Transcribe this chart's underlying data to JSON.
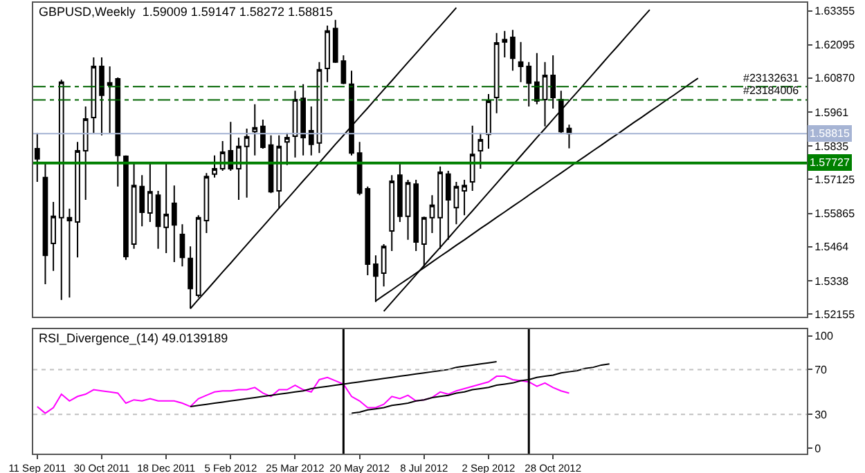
{
  "chart_data": [
    {
      "type": "candlestick",
      "title": "GBPUSD,Weekly  1.59009 1.59147 1.58272 1.58815",
      "categories": [
        null,
        null,
        null,
        null,
        null,
        null,
        null,
        null,
        null,
        null,
        null,
        null,
        null,
        null,
        null,
        null,
        null,
        null,
        null,
        null,
        null,
        null,
        null,
        null,
        null,
        null,
        null,
        null,
        null,
        null,
        null,
        null,
        null,
        null,
        null,
        null,
        null,
        null,
        null,
        null,
        null,
        null,
        null,
        null,
        null,
        null,
        null,
        null,
        null,
        null,
        null,
        null,
        null,
        null,
        null,
        null,
        null,
        null,
        null,
        null,
        null,
        null,
        null,
        null,
        null,
        null,
        null,
        null,
        null,
        null,
        null,
        null,
        null,
        null,
        null,
        null,
        null,
        null,
        null,
        null,
        null,
        null,
        null,
        null,
        null,
        null,
        null,
        null,
        null,
        null,
        null,
        null,
        null,
        null,
        null,
        null
      ],
      "ohlc": [
        [
          1.5826,
          1.5884,
          1.5703,
          1.5788
        ],
        [
          1.5719,
          1.5777,
          1.5325,
          1.5432
        ],
        [
          1.5476,
          1.5629,
          1.5374,
          1.5576
        ],
        [
          1.5571,
          1.6081,
          1.5267,
          1.6072
        ],
        [
          1.5571,
          1.5604,
          1.5276,
          1.556
        ],
        [
          1.5555,
          1.5851,
          1.5424,
          1.5818
        ],
        [
          1.5818,
          1.5982,
          1.5637,
          1.5936
        ],
        [
          1.5941,
          1.6163,
          1.5884,
          1.613
        ],
        [
          1.613,
          1.6163,
          1.5875,
          1.6023
        ],
        [
          1.6069,
          1.613,
          1.5884,
          1.6061
        ],
        [
          1.6084,
          1.6089,
          1.5686,
          1.5801
        ],
        [
          1.5798,
          1.5801,
          1.5415,
          1.5427
        ],
        [
          1.5473,
          1.5777,
          1.5456,
          1.569
        ],
        [
          1.5686,
          1.5728,
          1.5539,
          1.5591
        ],
        [
          1.5588,
          1.5772,
          1.5555,
          1.5667
        ],
        [
          1.5654,
          1.567,
          1.5456,
          1.5539
        ],
        [
          1.5535,
          1.5772,
          1.544,
          1.5583
        ],
        [
          1.5624,
          1.569,
          1.5407,
          1.5544
        ],
        [
          1.5509,
          1.5547,
          1.5391,
          1.5424
        ],
        [
          1.542,
          1.5465,
          1.5235,
          1.5309
        ],
        [
          1.5284,
          1.558,
          1.5276,
          1.5571
        ],
        [
          1.556,
          1.5736,
          1.5514,
          1.5723
        ],
        [
          1.5732,
          1.5801,
          1.5719,
          1.5752
        ],
        [
          1.5752,
          1.5854,
          1.5744,
          1.5813
        ],
        [
          1.5818,
          1.5925,
          1.5744,
          1.5752
        ],
        [
          1.5752,
          1.5867,
          1.5637,
          1.5834
        ],
        [
          1.5834,
          1.59,
          1.5645,
          1.587
        ],
        [
          1.5889,
          1.599,
          1.5801,
          1.5903
        ],
        [
          1.5908,
          1.5933,
          1.5826,
          1.5831
        ],
        [
          1.5839,
          1.5875,
          1.5662,
          1.5667
        ],
        [
          1.567,
          1.5875,
          1.5604,
          1.5834
        ],
        [
          1.5851,
          1.5884,
          1.5765,
          1.5867
        ],
        [
          1.5872,
          1.604,
          1.5793,
          1.6007
        ],
        [
          1.6012,
          1.6064,
          1.5801,
          1.5867
        ],
        [
          1.5892,
          1.5982,
          1.5801,
          1.5842
        ],
        [
          1.5847,
          1.6146,
          1.581,
          1.6118
        ],
        [
          1.6122,
          1.6281,
          1.6072,
          1.6261
        ],
        [
          1.627,
          1.6302,
          1.6143,
          1.6146
        ],
        [
          1.615,
          1.6171,
          1.6064,
          1.6068
        ],
        [
          1.6064,
          1.6114,
          1.5801,
          1.581
        ],
        [
          1.581,
          1.5851,
          1.5654,
          1.5662
        ],
        [
          1.5678,
          1.5686,
          1.5358,
          1.5399
        ],
        [
          1.5399,
          1.5432,
          1.5259,
          1.5355
        ],
        [
          1.5366,
          1.5473,
          1.5317,
          1.5465
        ],
        [
          1.5522,
          1.5728,
          1.5448,
          1.5706
        ],
        [
          1.5728,
          1.5769,
          1.5555,
          1.5576
        ],
        [
          1.5576,
          1.5711,
          1.5489,
          1.57
        ],
        [
          1.5695,
          1.5711,
          1.5448,
          1.5481
        ],
        [
          1.5473,
          1.5575,
          1.5391,
          1.5571
        ],
        [
          1.5571,
          1.5654,
          1.5514,
          1.5617
        ],
        [
          1.5571,
          1.576,
          1.5456,
          1.5739
        ],
        [
          1.5732,
          1.5744,
          1.5489,
          1.5637
        ],
        [
          1.5608,
          1.5703,
          1.5547,
          1.5686
        ],
        [
          1.567,
          1.5711,
          1.558,
          1.569
        ],
        [
          1.5703,
          1.5911,
          1.567,
          1.5805
        ],
        [
          1.5818,
          1.5884,
          1.5752,
          1.5859
        ],
        [
          1.5879,
          1.6028,
          1.5826,
          1.6002
        ],
        [
          1.6015,
          1.6253,
          1.5957,
          1.6217
        ],
        [
          1.6229,
          1.6261,
          1.6163,
          1.622
        ],
        [
          1.6237,
          1.6265,
          1.6114,
          1.616
        ],
        [
          1.6146,
          1.622,
          1.6072,
          1.613
        ],
        [
          1.613,
          1.6146,
          1.5982,
          1.6068
        ],
        [
          1.6072,
          1.6179,
          1.599,
          1.6002
        ],
        [
          1.6007,
          1.6146,
          1.5908,
          1.6097
        ],
        [
          1.6097,
          1.6171,
          1.5974,
          1.6015
        ],
        [
          1.6007,
          1.604,
          1.5884,
          1.5889
        ],
        [
          1.59009,
          1.59147,
          1.58272,
          1.58815
        ],
        null,
        null,
        null,
        null,
        null,
        null,
        null,
        null,
        null,
        null,
        null,
        null,
        null,
        null,
        null,
        null,
        null,
        null,
        null,
        null,
        null,
        null,
        null,
        null,
        null,
        null,
        null,
        null,
        null
      ],
      "series": [
        {
          "type": "line",
          "color": "#000000",
          "values": [
            null,
            null,
            null,
            null,
            null,
            null,
            null,
            null,
            null,
            null,
            null,
            null,
            null,
            null,
            null,
            null,
            null,
            null,
            null,
            1.5235,
            1.5269,
            1.5302,
            1.5336,
            1.537,
            1.5403,
            1.5437,
            1.5471,
            1.5505,
            1.5538,
            1.5572,
            1.5606,
            1.5639,
            1.5673,
            1.5707,
            1.574,
            1.5774,
            1.5808,
            1.5842,
            1.5875,
            1.5909,
            1.5943,
            1.5976,
            1.601,
            1.6044,
            1.6077,
            1.6111,
            1.6145,
            1.6178,
            1.6212,
            1.6246,
            1.6279,
            1.6313,
            1.6347,
            null,
            null,
            null,
            null,
            null,
            null,
            null,
            null,
            null,
            null,
            null,
            null,
            null,
            null,
            null,
            null,
            null,
            null,
            null,
            null,
            null,
            null,
            null,
            null,
            null,
            null,
            null,
            null,
            null,
            null,
            null,
            null,
            null,
            null,
            null,
            null,
            null,
            null,
            null,
            null,
            null,
            null,
            null
          ]
        },
        {
          "type": "line",
          "color": "#000000",
          "values": [
            null,
            null,
            null,
            null,
            null,
            null,
            null,
            null,
            null,
            null,
            null,
            null,
            null,
            null,
            null,
            null,
            null,
            null,
            null,
            null,
            null,
            null,
            null,
            null,
            null,
            null,
            null,
            null,
            null,
            null,
            null,
            null,
            null,
            null,
            null,
            null,
            null,
            null,
            null,
            null,
            null,
            null,
            1.5263,
            1.5284,
            1.5304,
            1.5325,
            1.5345,
            1.5366,
            1.5386,
            1.5407,
            1.5428,
            1.5448,
            1.5469,
            1.5489,
            1.551,
            1.5531,
            1.5551,
            1.5572,
            1.5592,
            1.5613,
            1.5633,
            1.5654,
            1.5675,
            1.5695,
            1.5716,
            1.5736,
            1.5757,
            1.5778,
            1.5798,
            1.5819,
            1.5839,
            1.586,
            1.588,
            1.5901,
            1.5922,
            1.5942,
            1.5963,
            1.5983,
            1.6004,
            1.6024,
            1.6045,
            1.6066,
            1.6086,
            null,
            null,
            null,
            null,
            null,
            null,
            null,
            null,
            null,
            null,
            null,
            null,
            null
          ]
        },
        {
          "type": "line",
          "color": "#000000",
          "values": [
            null,
            null,
            null,
            null,
            null,
            null,
            null,
            null,
            null,
            null,
            null,
            null,
            null,
            null,
            null,
            null,
            null,
            null,
            null,
            null,
            null,
            null,
            null,
            null,
            null,
            null,
            null,
            null,
            null,
            null,
            null,
            null,
            null,
            null,
            null,
            null,
            null,
            null,
            null,
            null,
            null,
            null,
            null,
            1.5225,
            1.5259,
            1.5293,
            1.5326,
            1.536,
            1.5394,
            1.5428,
            1.5461,
            1.5495,
            1.5529,
            1.5563,
            1.5596,
            1.563,
            1.5664,
            1.5698,
            1.5732,
            1.5765,
            1.5799,
            1.5833,
            1.5867,
            1.59,
            1.5934,
            1.5968,
            1.6002,
            1.6035,
            1.6069,
            1.6103,
            1.6137,
            1.6171,
            1.6204,
            1.6238,
            1.6272,
            1.6306,
            1.6339,
            null,
            null,
            null,
            null,
            null,
            null,
            null,
            null,
            null,
            null,
            null,
            null,
            null,
            null,
            null,
            null,
            null,
            null,
            null
          ]
        }
      ],
      "ylim": [
        1.5205,
        1.6365
      ],
      "yticks": [
        1.52155,
        1.5338,
        1.5464,
        1.55865,
        1.57125,
        1.5835,
        1.5961,
        {
          "value": 1.6087,
          "label": "1.60870"
        },
        1.62095,
        1.63355
      ],
      "ref_lines": [
        {
          "axis": "y",
          "value": 1.6055,
          "color": "#006400",
          "line_style": "dashed"
        },
        {
          "axis": "y",
          "value": 1.6006,
          "color": "#006400",
          "line_style": "dashed"
        },
        {
          "axis": "y",
          "value": 1.58815,
          "label": "1.58815",
          "color": "#a6b4d4"
        },
        {
          "axis": "y",
          "value": 1.57727,
          "label": "1.57727",
          "color": "#008000"
        }
      ],
      "annotations": [
        {
          "text": "#23132631",
          "y": 1.6055
        },
        {
          "text": "#23184006",
          "y": 1.6006
        }
      ],
      "tick_labels": "y"
    },
    {
      "type": "line",
      "title": "RSI_Divergence_(14) 49.0139189",
      "categories": [
        "11 Sep 2011",
        null,
        null,
        null,
        null,
        null,
        null,
        null,
        "30 Oct 2011",
        null,
        null,
        null,
        null,
        null,
        null,
        null,
        "18 Dec 2011",
        null,
        null,
        null,
        null,
        null,
        null,
        null,
        "5 Feb 2012",
        null,
        null,
        null,
        null,
        null,
        null,
        null,
        "25 Mar 2012",
        null,
        null,
        null,
        null,
        null,
        null,
        null,
        "20 May 2012",
        null,
        null,
        null,
        null,
        null,
        null,
        null,
        "8 Jul 2012",
        null,
        null,
        null,
        null,
        null,
        null,
        null,
        "2 Sep 2012",
        null,
        null,
        null,
        null,
        null,
        null,
        null,
        "28 Oct 2012",
        null,
        null,
        null,
        null,
        null,
        null,
        null,
        null,
        null,
        null,
        null,
        null,
        null,
        null,
        null,
        null,
        null,
        null,
        null,
        null,
        null,
        null,
        null,
        null,
        null,
        null,
        null,
        null,
        null,
        null,
        null
      ],
      "series": [
        {
          "color": "#ff00ff",
          "values": [
            37,
            31,
            36,
            48,
            42,
            46,
            48,
            52,
            51,
            50,
            49,
            40,
            43,
            42,
            44,
            42,
            42,
            42,
            40,
            37,
            44,
            47,
            50,
            51,
            51,
            52,
            52,
            54,
            49,
            46,
            52,
            52,
            56,
            52,
            50,
            61,
            63,
            60,
            57,
            46,
            42,
            36,
            36,
            39,
            46,
            44,
            47,
            42,
            43,
            45,
            50,
            48,
            51,
            53,
            55,
            57,
            59,
            64,
            64,
            61,
            60,
            59,
            55,
            58,
            54,
            51,
            49,
            null,
            null,
            null,
            null,
            null,
            null,
            null,
            null,
            null,
            null,
            null,
            null,
            null,
            null,
            null,
            null,
            null,
            null,
            null,
            null,
            null,
            null,
            null,
            null,
            null,
            null,
            null,
            null,
            null
          ]
        },
        {
          "type": "line",
          "color": "#000000",
          "values": [
            null,
            null,
            null,
            null,
            null,
            null,
            null,
            null,
            null,
            null,
            null,
            null,
            null,
            null,
            null,
            null,
            null,
            null,
            null,
            37,
            38,
            39,
            40,
            41,
            42,
            43,
            44,
            45,
            46,
            47,
            48,
            49,
            50,
            51,
            53,
            54,
            55,
            56,
            57,
            58,
            59,
            60,
            61,
            62,
            63,
            64,
            65,
            66,
            67,
            68,
            69,
            70,
            72,
            73,
            74,
            75,
            76,
            77,
            null,
            null,
            null,
            null,
            null,
            null,
            null,
            null,
            null,
            null,
            null,
            null,
            null,
            null,
            null,
            null,
            null,
            null,
            null,
            null,
            null,
            null,
            null,
            null,
            null,
            null,
            null,
            null,
            null,
            null,
            null,
            null,
            null,
            null,
            null,
            null,
            null,
            null
          ]
        },
        {
          "type": "line",
          "color": "#000000",
          "values": [
            null,
            null,
            null,
            null,
            null,
            null,
            null,
            null,
            null,
            null,
            null,
            null,
            null,
            null,
            null,
            null,
            null,
            null,
            null,
            null,
            null,
            null,
            null,
            null,
            null,
            null,
            null,
            null,
            null,
            null,
            null,
            null,
            null,
            null,
            null,
            null,
            null,
            null,
            null,
            31,
            32,
            34,
            35,
            36,
            38,
            39,
            40,
            42,
            43,
            45,
            46,
            47,
            49,
            50,
            52,
            53,
            54,
            56,
            57,
            58,
            60,
            61,
            63,
            64,
            65,
            67,
            68,
            69,
            71,
            72,
            74,
            75,
            null,
            null,
            null,
            null,
            null,
            null,
            null,
            null,
            null,
            null,
            null,
            null,
            null,
            null,
            null,
            null,
            null,
            null,
            null,
            null,
            null,
            null,
            null,
            null
          ]
        }
      ],
      "ylim": [
        -5,
        106
      ],
      "yticks": [
        0,
        30,
        70,
        100
      ],
      "ref_lines": [
        {
          "axis": "y",
          "value": 30,
          "color": "#c0c0c0",
          "line_style": "dotted"
        },
        {
          "axis": "y",
          "value": 70,
          "color": "#c0c0c0",
          "line_style": "dotted"
        }
      ]
    }
  ]
}
